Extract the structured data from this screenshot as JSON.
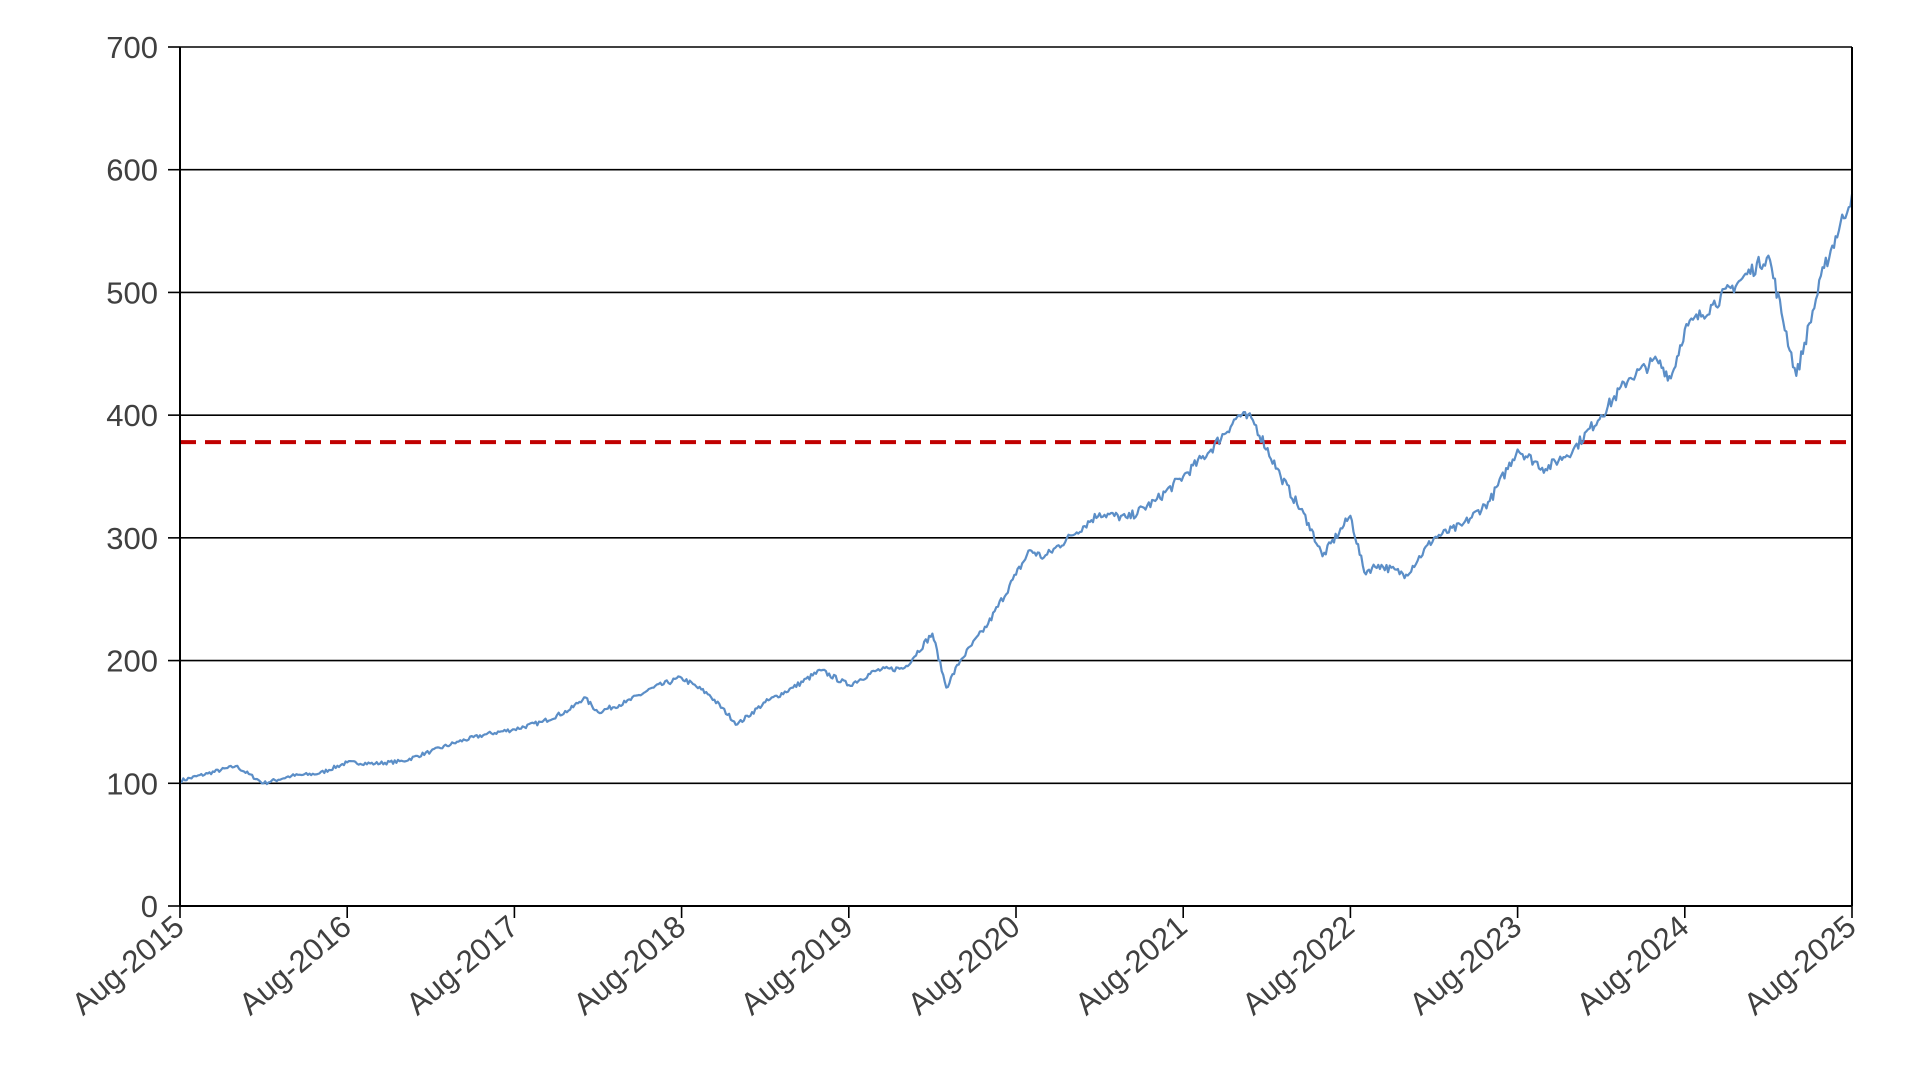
{
  "chart_data": {
    "type": "line",
    "title": "",
    "xlabel": "",
    "ylabel": "",
    "ylim": [
      0,
      700
    ],
    "yticks": [
      0,
      100,
      200,
      300,
      400,
      500,
      600,
      700
    ],
    "xlim": [
      "2015-08",
      "2025-08"
    ],
    "xtick_labels": [
      "Aug-2015",
      "Aug-2016",
      "Aug-2017",
      "Aug-2018",
      "Aug-2019",
      "Aug-2020",
      "Aug-2021",
      "Aug-2022",
      "Aug-2023",
      "Aug-2024",
      "Aug-2025"
    ],
    "grid": "horizontal",
    "legend": "none",
    "series": [
      {
        "color": "#5b8ec7",
        "x": [
          "2015-08",
          "2015-10",
          "2015-12",
          "2016-02",
          "2016-04",
          "2016-06",
          "2016-08",
          "2016-10",
          "2016-12",
          "2017-02",
          "2017-04",
          "2017-06",
          "2017-08",
          "2017-10",
          "2017-12",
          "2018-01",
          "2018-02",
          "2018-04",
          "2018-06",
          "2018-08",
          "2018-10",
          "2018-12",
          "2019-02",
          "2019-04",
          "2019-06",
          "2019-08",
          "2019-10",
          "2019-12",
          "2020-02",
          "2020-03",
          "2020-04",
          "2020-06",
          "2020-08",
          "2020-09",
          "2020-10",
          "2020-12",
          "2021-02",
          "2021-04",
          "2021-06",
          "2021-08",
          "2021-10",
          "2021-12",
          "2022-01",
          "2022-03",
          "2022-05",
          "2022-06",
          "2022-08",
          "2022-09",
          "2022-10",
          "2022-12",
          "2023-02",
          "2023-04",
          "2023-06",
          "2023-08",
          "2023-10",
          "2023-12",
          "2024-02",
          "2024-04",
          "2024-06",
          "2024-07",
          "2024-08",
          "2024-10",
          "2024-12",
          "2025-02",
          "2025-04",
          "2025-06",
          "2025-08"
        ],
        "y": [
          102,
          108,
          114,
          100,
          106,
          108,
          117,
          116,
          118,
          126,
          134,
          140,
          144,
          150,
          160,
          170,
          158,
          166,
          178,
          186,
          172,
          148,
          166,
          178,
          192,
          180,
          192,
          194,
          222,
          178,
          200,
          230,
          270,
          290,
          284,
          302,
          320,
          316,
          330,
          350,
          372,
          400,
          396,
          350,
          312,
          285,
          318,
          272,
          278,
          270,
          300,
          310,
          330,
          372,
          356,
          372,
          400,
          430,
          445,
          430,
          470,
          490,
          510,
          530,
          432,
          520,
          580
        ]
      }
    ],
    "reference_lines": [
      {
        "y": 378,
        "style": "dashed",
        "color": "#c00000"
      }
    ]
  }
}
